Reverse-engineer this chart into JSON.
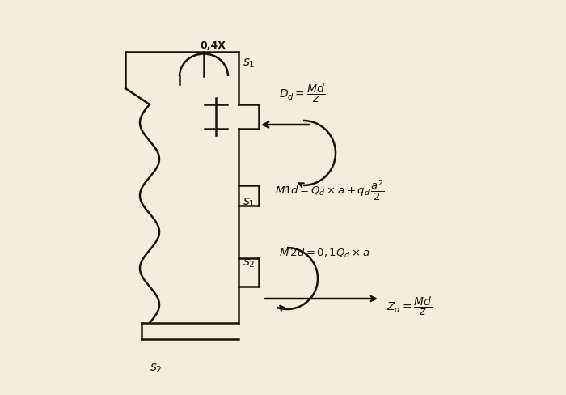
{
  "bg_color": "#f2eddf",
  "line_color": "#1a1208",
  "annotation_0_4x": "0,4X",
  "label_S1_top": "$s_1$",
  "label_S1_mid": "$s_1$",
  "label_S2_top": "$s_2$",
  "label_S2_bot": "$s_2$"
}
